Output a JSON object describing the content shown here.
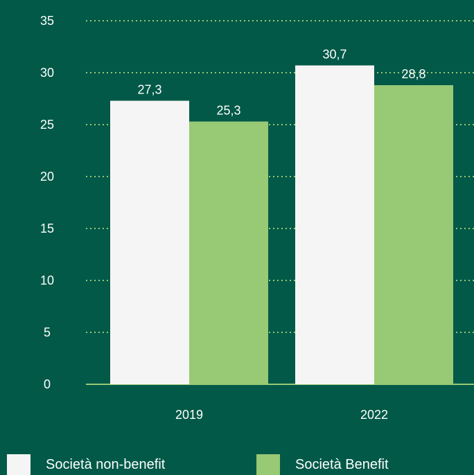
{
  "chart_data": {
    "type": "bar",
    "categories": [
      "2019",
      "2022"
    ],
    "series": [
      {
        "name": "Società non-benefit",
        "values": [
          27.3,
          30.7
        ],
        "labels": [
          "27,3",
          "30,7"
        ],
        "color": "#f5f5f5"
      },
      {
        "name": "Società Benefit",
        "values": [
          25.3,
          28.8
        ],
        "labels": [
          "25,3",
          "28,8"
        ],
        "color": "#98c974"
      }
    ],
    "yticks": [
      "0",
      "5",
      "10",
      "15",
      "20",
      "25",
      "30",
      "35"
    ],
    "ylim": [
      0,
      35
    ],
    "grid": true,
    "legend_position": "bottom",
    "colors": {
      "background": "#025948",
      "grid": "#98c974",
      "text": "#ffffff"
    }
  }
}
